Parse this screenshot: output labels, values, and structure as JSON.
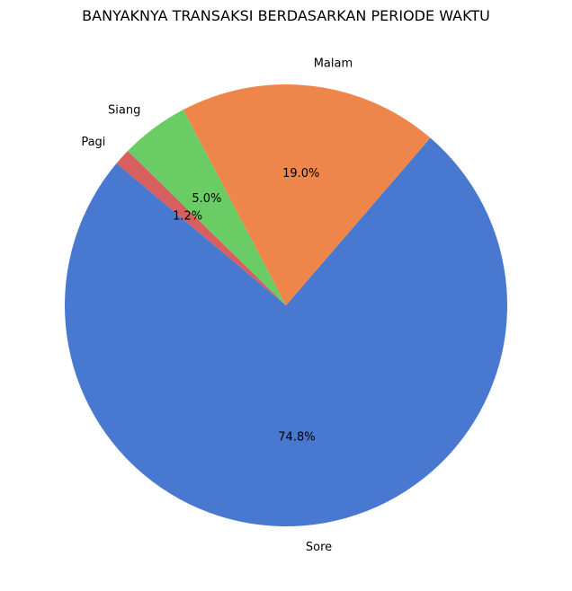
{
  "chart_data": {
    "type": "pie",
    "title": "BANYAKNYA TRANSAKSI BERDASARKAN PERIODE WAKTU",
    "categories": [
      "Sore",
      "Malam",
      "Siang",
      "Pagi"
    ],
    "values": [
      74.8,
      19.0,
      5.0,
      1.2
    ],
    "value_labels": [
      "74.8%",
      "19.0%",
      "5.0%",
      "1.2%"
    ],
    "colors": [
      "#4878d0",
      "#ee854a",
      "#6acc64",
      "#d65f5f"
    ],
    "start_angle_deg": 140,
    "direction": "counterclockwise",
    "legend": "none"
  }
}
